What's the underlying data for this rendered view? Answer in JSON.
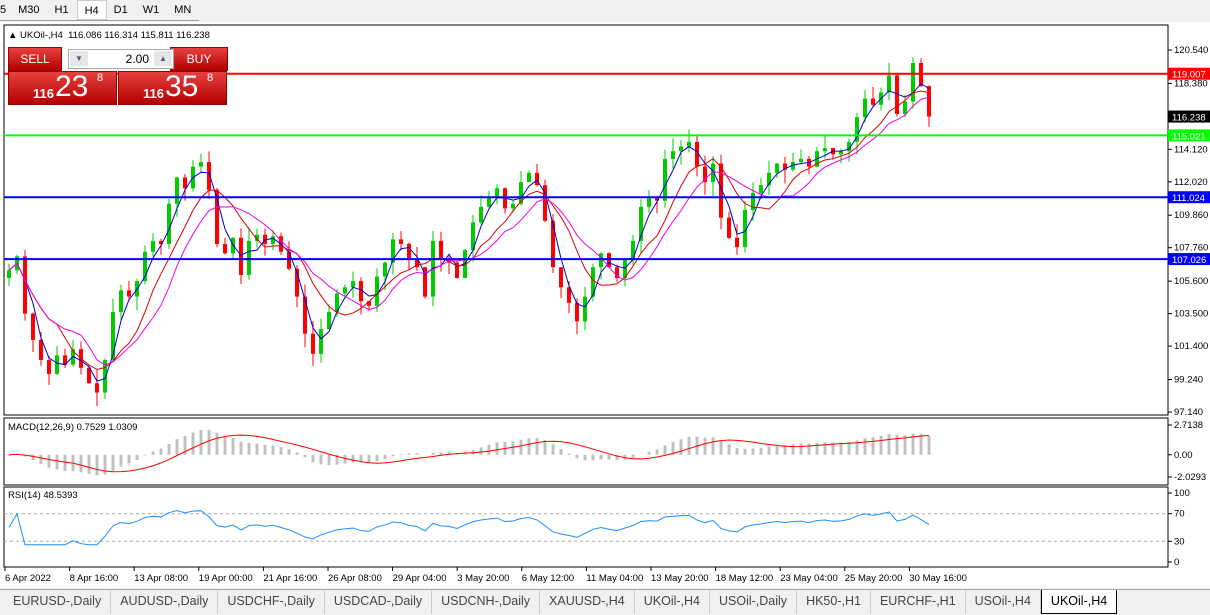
{
  "timeframes": [
    "5",
    "M30",
    "H1",
    "H4",
    "D1",
    "W1",
    "MN"
  ],
  "active_timeframe": "H4",
  "chart": {
    "title": "UKOil-,H4",
    "ohlc": "116.086 116.314 115.811 116.238"
  },
  "trade": {
    "sell_label": "SELL",
    "buy_label": "BUY",
    "lot": "2.00",
    "sell_small": "116",
    "sell_big": "23",
    "sell_pip": "8",
    "buy_small": "116",
    "buy_big": "35",
    "buy_pip": "8"
  },
  "price_axis": [
    "120.540",
    "118.380",
    "116.238",
    "114.120",
    "112.020",
    "109.860",
    "107.760",
    "105.600",
    "103.500",
    "101.400",
    "99.240",
    "97.140"
  ],
  "price_axis_values": [
    120.54,
    118.38,
    116.238,
    114.12,
    112.02,
    109.86,
    107.76,
    105.6,
    103.5,
    101.4,
    99.24,
    97.14
  ],
  "hlines": [
    {
      "price": 119.007,
      "label": "119.007",
      "color": "#ff0000"
    },
    {
      "price": 115.021,
      "label": "115.021",
      "color": "#00ff00"
    },
    {
      "price": 111.024,
      "label": "111.024",
      "color": "#0000ff"
    },
    {
      "price": 107.026,
      "label": "107.026",
      "color": "#0000ff"
    }
  ],
  "current_price": {
    "price": 116.238,
    "label": "116.238"
  },
  "colors": {
    "bull": "#00cc00",
    "bear": "#ff0000",
    "ma_fast": "#0000cc",
    "ma_mid": "#dd0000",
    "ma_slow": "#ee00ee",
    "macd_hist": "#c0c0c0",
    "macd_signal": "#ff0000",
    "rsi": "#1e90ff"
  },
  "closes": [
    106.3,
    107.2,
    103.5,
    101.8,
    100.5,
    99.6,
    100.8,
    100.2,
    101.2,
    100.0,
    99.0,
    98.4,
    100.5,
    103.6,
    105.0,
    104.6,
    105.6,
    107.5,
    108.2,
    108.0,
    110.6,
    112.3,
    111.6,
    113.0,
    113.3,
    111.5,
    108.0,
    107.4,
    108.4,
    106.0,
    108.2,
    108.6,
    108.0,
    108.5,
    107.5,
    106.4,
    104.6,
    102.2,
    100.9,
    102.5,
    103.6,
    104.8,
    105.2,
    105.6,
    104.3,
    104.0,
    105.9,
    106.8,
    108.3,
    108.0,
    107.0,
    106.5,
    104.6,
    108.2,
    107.0,
    106.8,
    105.8,
    107.6,
    109.4,
    110.4,
    111.0,
    111.6,
    110.3,
    110.6,
    112.0,
    112.6,
    111.8,
    109.5,
    106.5,
    105.2,
    104.2,
    103.0,
    104.6,
    106.5,
    107.4,
    106.5,
    105.8,
    107.0,
    108.2,
    110.4,
    111.0,
    110.8,
    113.5,
    114.0,
    114.3,
    114.6,
    113.0,
    112.0,
    113.2,
    109.7,
    108.4,
    107.8,
    110.2,
    111.3,
    111.8,
    112.6,
    113.2,
    112.8,
    113.3,
    113.5,
    113.0,
    114.0,
    114.2,
    113.8,
    114.0,
    114.6,
    116.2,
    117.4,
    117.0,
    117.8,
    118.9,
    116.4,
    117.2,
    119.7,
    118.2,
    116.238
  ],
  "macd": {
    "label": "MACD(12,26,9) 0.7529 1.0309",
    "axis": [
      "2.7138",
      "0.00",
      "-2.0293"
    ],
    "axis_values": [
      2.7138,
      0,
      -2.0293
    ]
  },
  "rsi": {
    "label": "RSI(14) 48.5393",
    "axis": [
      "100",
      "70",
      "30",
      "0"
    ],
    "axis_values": [
      100,
      70,
      30,
      0
    ]
  },
  "time_axis": [
    "6 Apr 2022",
    "8 Apr 16:00",
    "13 Apr 08:00",
    "19 Apr 00:00",
    "21 Apr 16:00",
    "26 Apr 08:00",
    "29 Apr 04:00",
    "3 May 20:00",
    "6 May 12:00",
    "11 May 04:00",
    "13 May 20:00",
    "18 May 12:00",
    "23 May 04:00",
    "25 May 20:00",
    "30 May 16:00"
  ],
  "tabs": [
    "EURUSD-,Daily",
    "AUDUSD-,Daily",
    "USDCHF-,Daily",
    "USDCAD-,Daily",
    "USDCNH-,Daily",
    "XAUUSD-,H4",
    "UKOil-,H4",
    "USOil-,Daily",
    "HK50-,H1",
    "EURCHF-,H1",
    "USOil-,H4",
    "UKOil-,H4"
  ],
  "active_tab": 11
}
